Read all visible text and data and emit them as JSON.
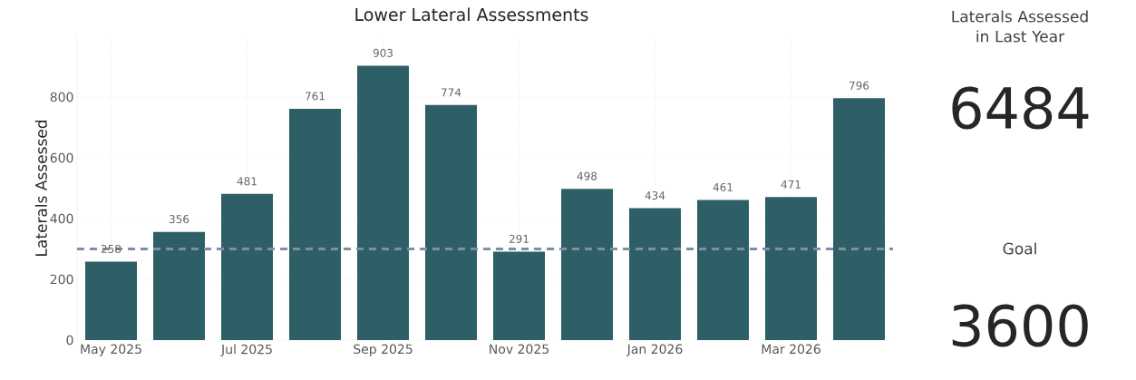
{
  "chart_data": [
    {
      "type": "bar",
      "title": "Lower Lateral Assessments",
      "ylabel": "Laterals Assessed",
      "categories": [
        "May 2025",
        null,
        "Jul 2025",
        null,
        "Sep 2025",
        null,
        "Nov 2025",
        null,
        "Jan 2026",
        null,
        "Mar 2026",
        null
      ],
      "series": [
        {
          "color": "#2e5f67",
          "values": [
            258,
            356,
            481,
            761,
            903,
            774,
            291,
            498,
            434,
            461,
            471,
            796
          ]
        }
      ],
      "ylim": [
        0,
        1000
      ],
      "yticks": [
        0,
        200,
        400,
        600,
        800
      ],
      "grid": true,
      "data_labels": true,
      "ref_lines": [
        {
          "axis": "y",
          "value": 300,
          "color": "#7f8ea6",
          "line_style": "dashed"
        }
      ]
    },
    {
      "type": "other",
      "annotations": [
        "Laterals Assessed in Last Year",
        "6484",
        "Goal",
        "3600"
      ]
    }
  ]
}
